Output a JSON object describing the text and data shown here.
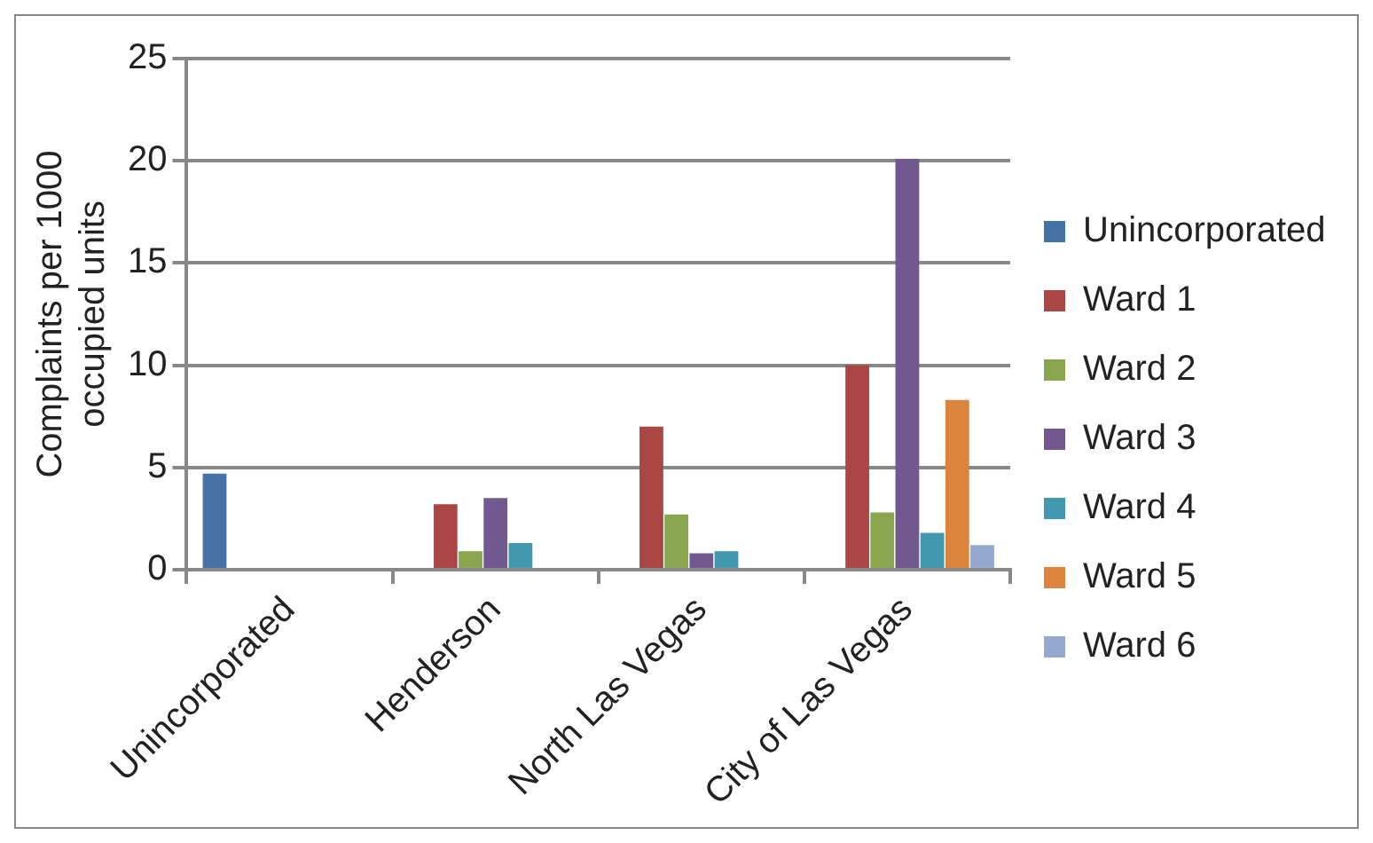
{
  "chart_data": {
    "type": "bar",
    "ylabel": "Complaints per 1000 occupied units",
    "categories": [
      "Unincorporated",
      "Henderson",
      "North Las Vegas",
      "City of Las Vegas"
    ],
    "series": [
      {
        "name": "Unincorporated",
        "color": "#4573a7",
        "values": [
          4.7,
          null,
          null,
          null
        ]
      },
      {
        "name": "Ward 1",
        "color": "#aa4644",
        "values": [
          null,
          3.2,
          7.0,
          10.0
        ]
      },
      {
        "name": "Ward 2",
        "color": "#89a54e",
        "values": [
          null,
          0.9,
          2.7,
          2.8
        ]
      },
      {
        "name": "Ward 3",
        "color": "#71588f",
        "values": [
          null,
          3.5,
          0.8,
          20.1
        ]
      },
      {
        "name": "Ward 4",
        "color": "#4198af",
        "values": [
          null,
          1.3,
          0.9,
          1.8
        ]
      },
      {
        "name": "Ward 5",
        "color": "#db843d",
        "values": [
          null,
          null,
          null,
          8.3
        ]
      },
      {
        "name": "Ward 6",
        "color": "#93a9cf",
        "values": [
          null,
          null,
          null,
          1.2
        ]
      }
    ],
    "ylim": [
      0,
      25
    ],
    "yticks": [
      0,
      5,
      10,
      15,
      20,
      25
    ],
    "grid": "y",
    "legend": "right"
  }
}
